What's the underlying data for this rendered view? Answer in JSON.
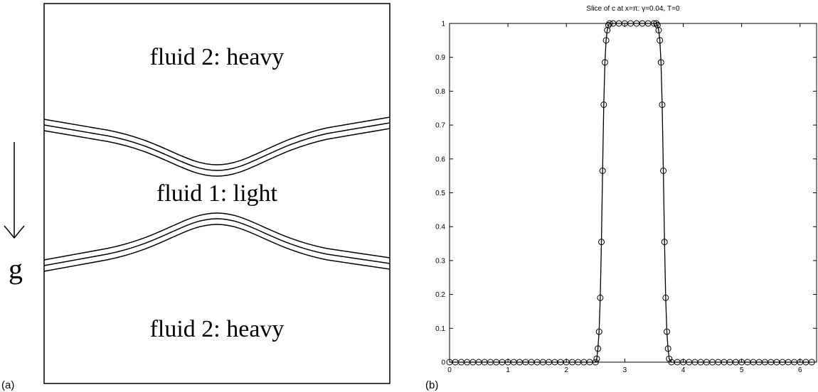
{
  "panel_a": {
    "label": "(a)",
    "top_region": "fluid 2: heavy",
    "middle_region": "fluid 1: light",
    "bottom_region": "fluid 2: heavy",
    "gravity": "g"
  },
  "panel_b": {
    "label": "(b)"
  },
  "chart_data": {
    "type": "line",
    "title": "Slice of c at x=π: γ=0.04, T=0",
    "marker": "circle",
    "x": [
      0,
      0.1,
      0.2,
      0.3,
      0.4,
      0.5,
      0.6,
      0.7,
      0.8,
      0.9,
      1,
      1.1,
      1.2,
      1.3,
      1.4,
      1.5,
      1.6,
      1.7,
      1.8,
      1.9,
      2,
      2.1,
      2.2,
      2.3,
      2.4,
      2.5,
      2.52,
      2.54,
      2.56,
      2.58,
      2.6,
      2.62,
      2.64,
      2.66,
      2.68,
      2.7,
      2.72,
      2.74,
      2.8,
      2.9,
      3,
      3.1,
      3.2,
      3.3,
      3.4,
      3.5,
      3.54,
      3.56,
      3.58,
      3.6,
      3.62,
      3.64,
      3.66,
      3.68,
      3.7,
      3.72,
      3.74,
      3.76,
      3.8,
      3.9,
      4,
      4.1,
      4.2,
      4.3,
      4.4,
      4.5,
      4.6,
      4.7,
      4.8,
      4.9,
      5,
      5.1,
      5.2,
      5.3,
      5.4,
      5.5,
      5.6,
      5.7,
      5.8,
      5.9,
      6,
      6.1,
      6.2
    ],
    "series": [
      {
        "color": "#000000",
        "values": [
          0,
          0,
          0,
          0,
          0,
          0,
          0,
          0,
          0,
          0,
          0,
          0,
          0,
          0,
          0,
          0,
          0,
          0,
          0,
          0,
          0,
          0,
          0,
          0,
          0,
          0,
          0.01,
          0.04,
          0.09,
          0.19,
          0.355,
          0.565,
          0.76,
          0.885,
          0.95,
          0.98,
          0.995,
          1,
          1,
          1,
          1,
          1,
          1,
          1,
          1,
          1,
          1,
          0.995,
          0.98,
          0.95,
          0.885,
          0.76,
          0.565,
          0.355,
          0.19,
          0.09,
          0.04,
          0.01,
          0,
          0,
          0,
          0,
          0,
          0,
          0,
          0,
          0,
          0,
          0,
          0,
          0,
          0,
          0,
          0,
          0,
          0,
          0,
          0,
          0,
          0,
          0,
          0,
          0
        ]
      }
    ],
    "xlim": [
      0,
      6.2832
    ],
    "ylim": [
      0,
      1
    ],
    "xticks": [
      0,
      1,
      2,
      3,
      4,
      5,
      6
    ],
    "yticks": [
      0,
      0.1,
      0.2,
      0.3,
      0.4,
      0.5,
      0.6,
      0.7,
      0.8,
      0.9,
      1
    ],
    "grid": false
  }
}
